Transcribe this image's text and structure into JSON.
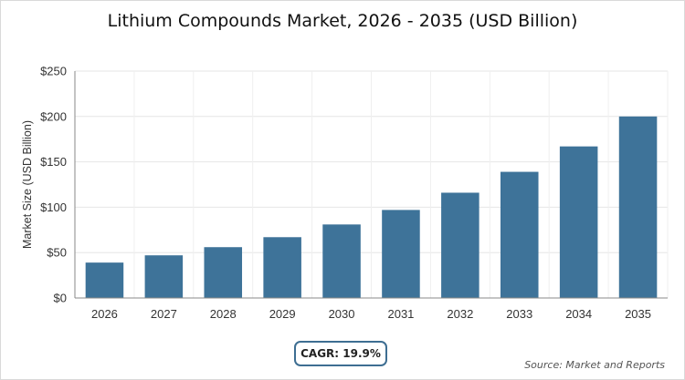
{
  "chart_data": {
    "type": "bar",
    "title": "Lithium Compounds Market, 2026 - 2035 (USD Billion)",
    "ylabel": "Market Size (USD Billion)",
    "xlabel": "",
    "categories": [
      "2026",
      "2027",
      "2028",
      "2029",
      "2030",
      "2031",
      "2032",
      "2033",
      "2034",
      "2035"
    ],
    "values": [
      39,
      47,
      56,
      67,
      81,
      97,
      116,
      139,
      167,
      200
    ],
    "ylim": [
      0,
      250
    ],
    "yticks": [
      0,
      50,
      100,
      150,
      200,
      250
    ],
    "ytick_labels": [
      "$0",
      "$50",
      "$100",
      "$150",
      "$200",
      "$250"
    ],
    "grid": true,
    "bar_color": "#3e7399"
  },
  "cagr_label": "CAGR: 19.9%",
  "source_label": "Source: Market and Reports"
}
